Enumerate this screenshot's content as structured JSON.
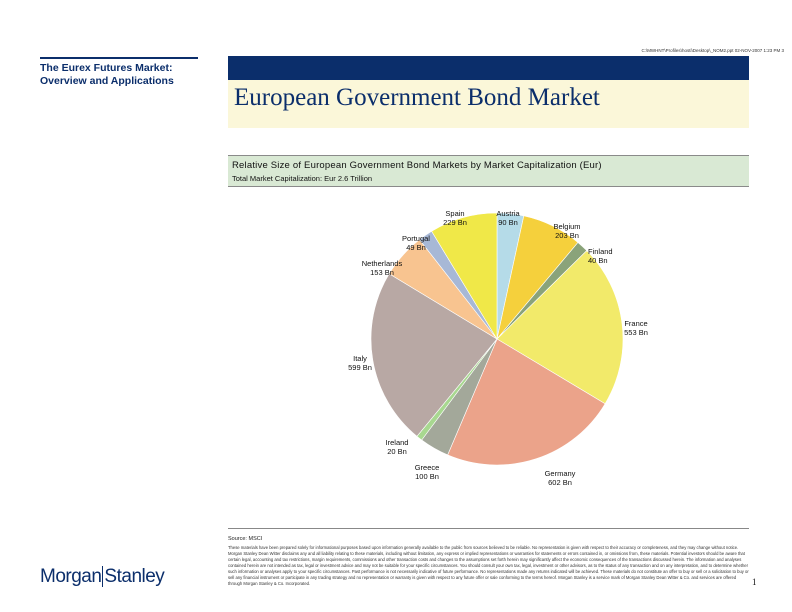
{
  "header": {
    "path": "C:\\MWHNT\\Profiles\\hosti\\Desktop\\_NOM2.ppt 02-NOV-2007 1:23 PM 3"
  },
  "sidebar": {
    "title_line1": "The Eurex Futures Market:",
    "title_line2": "Overview and Applications"
  },
  "main": {
    "title": "European Government Bond Market"
  },
  "footer": {
    "source": "Source:   MSCI",
    "disclaimer": "These materials have been prepared solely for informational purposes based upon information generally available to the public from sources believed to be reliable. No representation is given with respect to their accuracy or completeness, and they may change without notice. Morgan Stanley Dean Witter disclaims any and all liability relating to these materials, including without limitation, any express or implied representations or warranties for statements or errors contained in, or omissions from, these materials. Potential investors should be aware that certain legal, accounting and tax restrictions, margin requirements, commissions and other transaction costs and changes to the assumptions set forth herein may significantly affect the economic consequences of the transactions discussed herein. The information and analyses contained herein are not intended as tax, legal or investment advice and may not be suitable for your specific circumstances. You should consult your own tax, legal, investment or other advisors, as to the status of any transaction and on any interpretation, and to determine whether such information or analyses apply to your specific circumstances. Past performance is not necessarily indicative of future performance. No representations made any returns indicated will be achieved. These materials do not constitute an offer to buy or sell or a solicitation to buy or sell any financial instrument or participate in any trading strategy and no representation or warranty is given with respect to any future offer or sale conforming to the terms hereof. Morgan Stanley is a service mark of Morgan Stanley Dean Witter & Co. and services are offered through Morgan Stanley & Co. Incorporated.",
    "logo": "MorganStanley",
    "page_number": "1"
  },
  "chart_data": {
    "type": "pie",
    "title": "Relative Size of European Government Bond Markets by Market Capitalization (Eur)",
    "subtitle": "Total Market Capitalization: Eur 2.6 Trillion",
    "slices": [
      {
        "name": "Austria",
        "value": 90,
        "label_value": "90 Bn",
        "color": "#b5dbe8"
      },
      {
        "name": "Belgium",
        "value": 203,
        "label_value": "203 Bn",
        "color": "#f5d03c"
      },
      {
        "name": "Finland",
        "value": 40,
        "label_value": "40 Bn",
        "color": "#8aa37a"
      },
      {
        "name": "France",
        "value": 553,
        "label_value": "553 Bn",
        "color": "#f2ea6a"
      },
      {
        "name": "Germany",
        "value": 602,
        "label_value": "602 Bn",
        "color": "#eba38a"
      },
      {
        "name": "Greece",
        "value": 100,
        "label_value": "100 Bn",
        "color": "#a3a89a"
      },
      {
        "name": "Ireland",
        "value": 20,
        "label_value": "20 Bn",
        "color": "#a8d890"
      },
      {
        "name": "Italy",
        "value": 599,
        "label_value": "599 Bn",
        "color": "#b8a8a4"
      },
      {
        "name": "Netherlands",
        "value": 153,
        "label_value": "153 Bn",
        "color": "#f8c490"
      },
      {
        "name": "Portugal",
        "value": 49,
        "label_value": "49 Bn",
        "color": "#a7b8d6"
      },
      {
        "name": "Spain",
        "value": 229,
        "label_value": "229 Bn",
        "color": "#f0e848"
      }
    ]
  }
}
